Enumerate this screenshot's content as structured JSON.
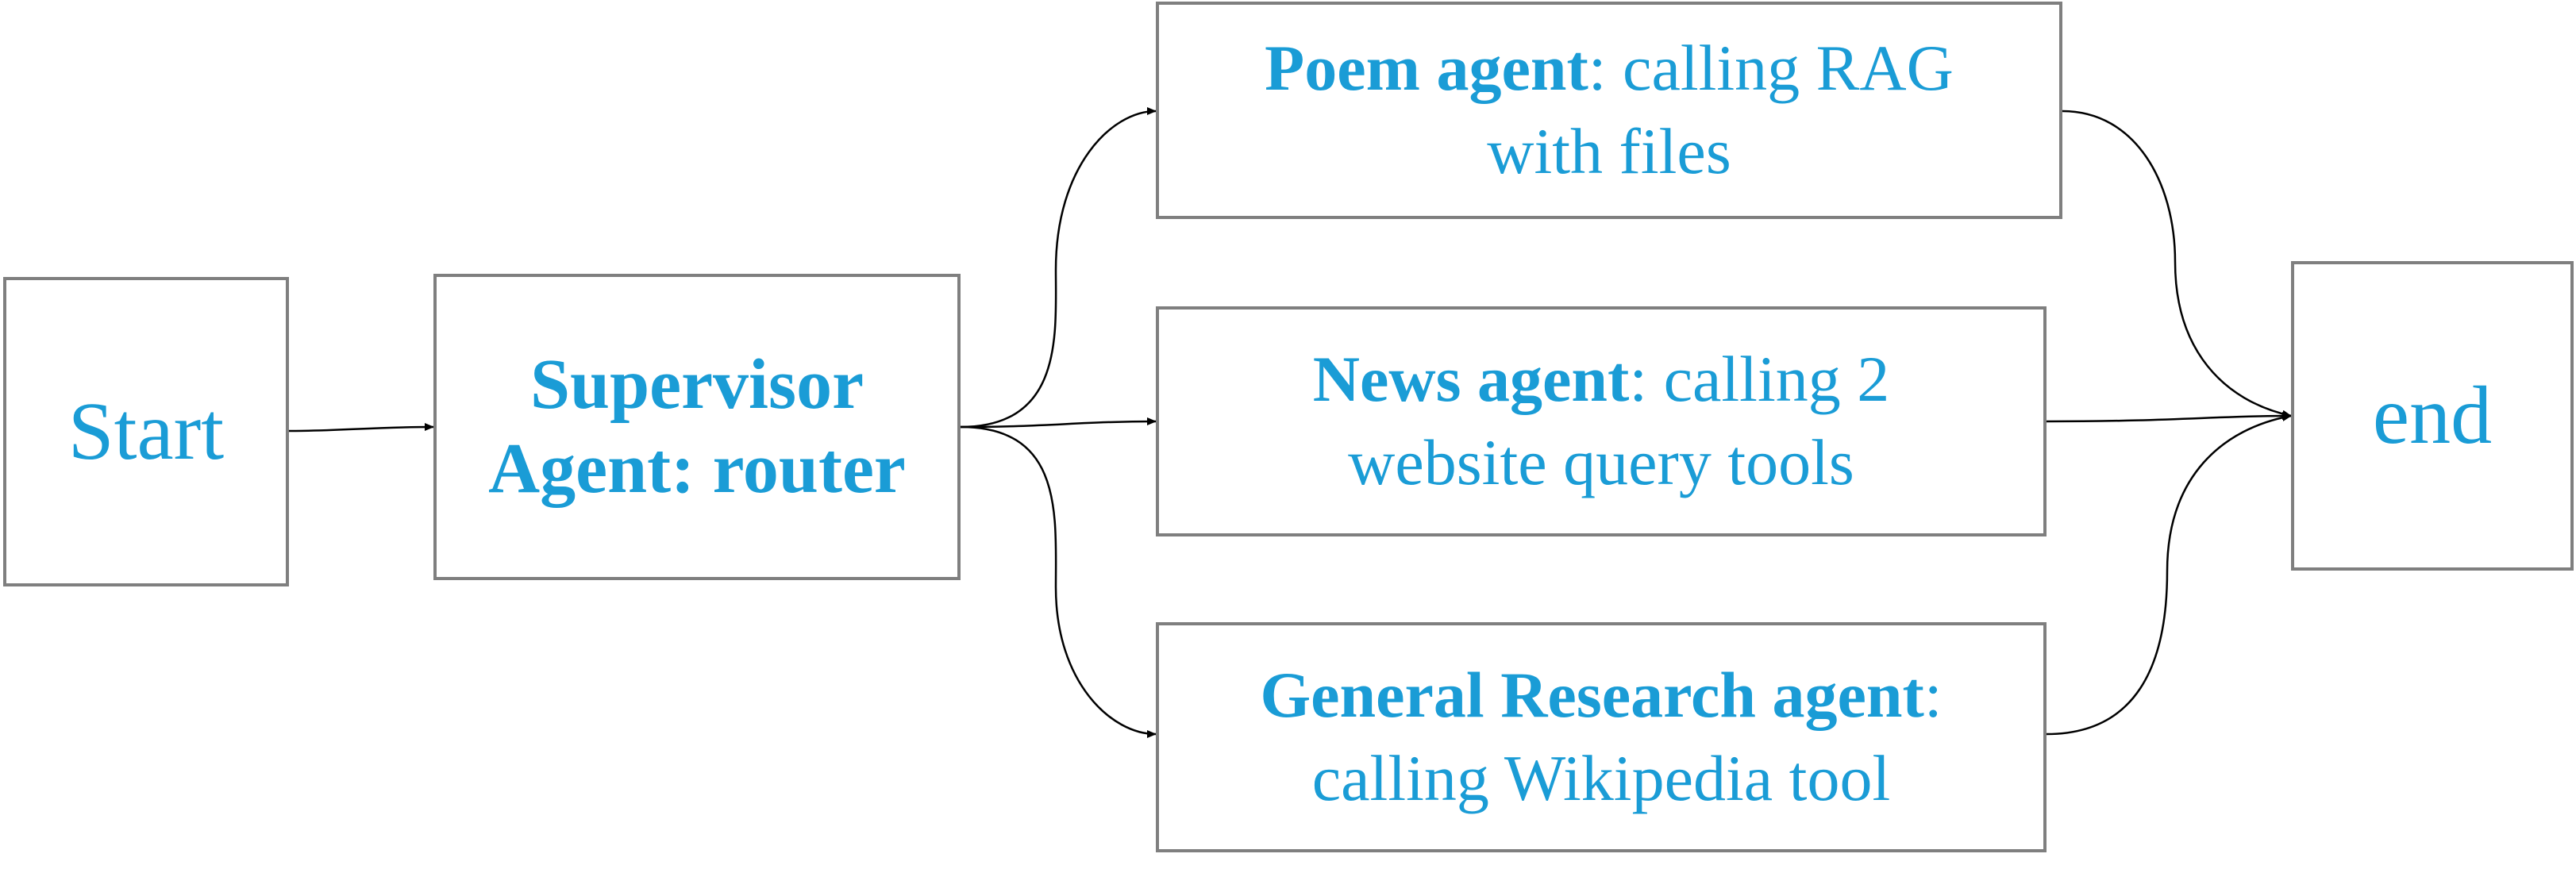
{
  "diagram": {
    "start": {
      "label": "Start"
    },
    "supervisor": {
      "line1": "Supervisor",
      "line2": "Agent: router"
    },
    "agents": [
      {
        "name": "Poem agent",
        "desc1": ": calling RAG",
        "desc2": "with files"
      },
      {
        "name": "News agent",
        "desc1": ": calling 2",
        "desc2": "website query tools"
      },
      {
        "name": "General Research agent",
        "desc1": ":",
        "desc2": "calling Wikipedia tool"
      }
    ],
    "end": {
      "label": "end"
    }
  },
  "colors": {
    "text": "#1a9cd6",
    "border": "#7f7f7f",
    "edge": "#000000"
  }
}
